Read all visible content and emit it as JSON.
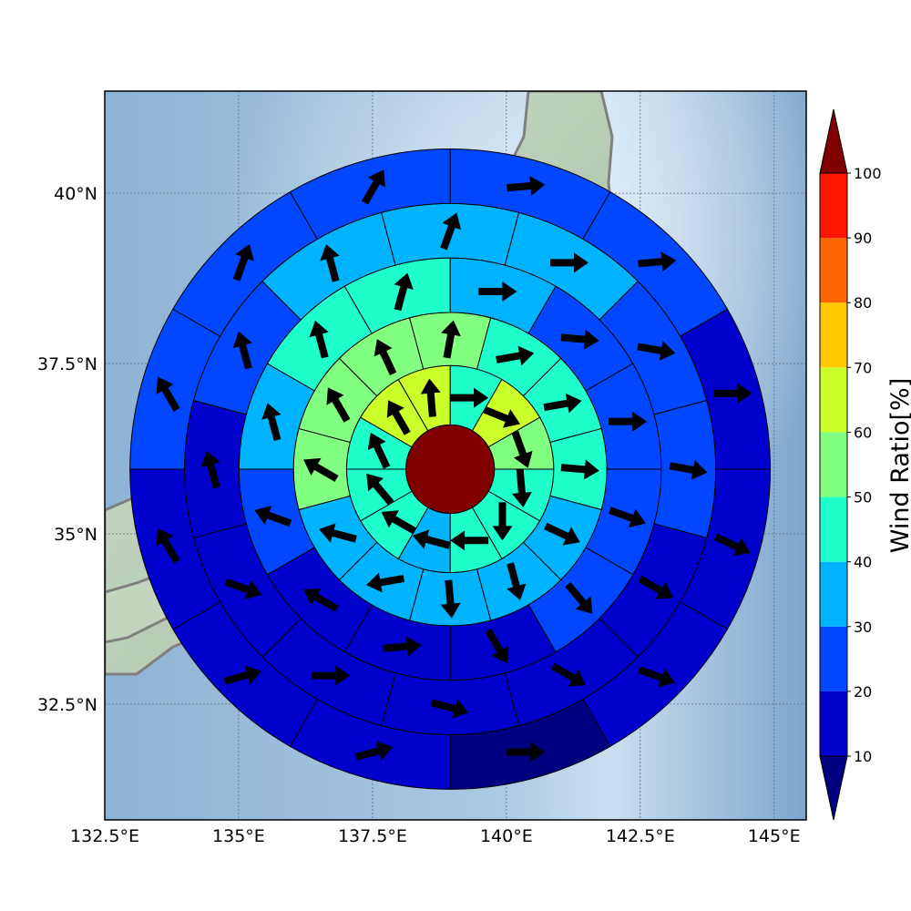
{
  "map": {
    "lon_range": [
      132.5,
      145.6
    ],
    "lat_range": [
      30.8,
      41.5
    ],
    "center": {
      "lon": 138.95,
      "lat": 35.95
    },
    "background": "shaded-relief",
    "coastline_color": "#808080",
    "gridlines": true,
    "x_ticks": [
      {
        "value": 132.5,
        "label": "132.5°E"
      },
      {
        "value": 135.0,
        "label": "135°E"
      },
      {
        "value": 137.5,
        "label": "137.5°E"
      },
      {
        "value": 140.0,
        "label": "140°E"
      },
      {
        "value": 142.5,
        "label": "142.5°E"
      },
      {
        "value": 145.0,
        "label": "145°E"
      }
    ],
    "y_ticks": [
      {
        "value": 40.0,
        "label": "40°N"
      },
      {
        "value": 37.5,
        "label": "37.5°N"
      },
      {
        "value": 35.0,
        "label": "35°N"
      },
      {
        "value": 32.5,
        "label": "32.5°N"
      }
    ]
  },
  "wind_rose": {
    "ring_radii_deg": [
      0.65,
      1.52,
      2.3,
      3.1,
      3.9,
      4.7
    ],
    "center_ratio": 100,
    "center_color": "#800000",
    "sectors_per_ring": 12,
    "first_sector_start": "north",
    "direction": "clockwise",
    "rings": [
      {
        "ratios": [
          45,
          65,
          55,
          40,
          40,
          45,
          35,
          40,
          45,
          45,
          65,
          65
        ],
        "wind_dirs": [
          90,
          112,
          160,
          175,
          180,
          270,
          285,
          300,
          320,
          335,
          330,
          355
        ]
      },
      {
        "ratios": [
          45,
          45,
          45,
          35,
          35,
          30,
          30,
          30,
          50,
          55,
          55,
          55
        ],
        "wind_dirs": [
          80,
          80,
          95,
          115,
          165,
          175,
          260,
          285,
          300,
          330,
          335,
          10
        ]
      },
      {
        "ratios": [
          35,
          25,
          25,
          25,
          25,
          15,
          15,
          15,
          25,
          35,
          45,
          45
        ],
        "wind_dirs": [
          90,
          95,
          90,
          110,
          140,
          150,
          85,
          300,
          290,
          345,
          345,
          15
        ]
      },
      {
        "ratios": [
          30,
          25,
          25,
          15,
          15,
          15,
          15,
          15,
          15,
          25,
          35,
          35
        ],
        "wind_dirs": [
          90,
          100,
          100,
          120,
          120,
          105,
          90,
          110,
          345,
          345,
          345,
          20
        ]
      },
      {
        "ratios": [
          25,
          25,
          15,
          15,
          15,
          5,
          15,
          15,
          15,
          25,
          25,
          25
        ],
        "wind_dirs": [
          85,
          85,
          90,
          115,
          110,
          90,
          75,
          75,
          330,
          330,
          20,
          30
        ]
      },
      {
        "ratios": [
          15,
          20,
          15,
          15,
          15,
          10,
          10,
          10,
          15,
          25,
          25,
          20
        ],
        "wind_dirs": [
          90,
          95,
          95,
          115,
          110,
          90,
          75,
          75,
          330,
          330,
          340,
          30
        ]
      }
    ]
  },
  "colorbar": {
    "title": "Wind Ratio[%]",
    "bounds": [
      10,
      20,
      30,
      40,
      50,
      60,
      70,
      80,
      90,
      100
    ],
    "colors": [
      "#0000cd",
      "#0047ff",
      "#00b3ff",
      "#1effcc",
      "#80ff80",
      "#cbff2a",
      "#ffc800",
      "#ff6400",
      "#ff1500"
    ],
    "under_color": "#000080",
    "over_color": "#800000",
    "tick_labels": [
      "10",
      "20",
      "30",
      "40",
      "50",
      "60",
      "70",
      "80",
      "90",
      "100"
    ]
  }
}
